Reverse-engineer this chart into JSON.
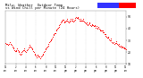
{
  "title": "Milw. Weather  Outdoor Temp",
  "title2": "vs Wind Chill per Minute (24 Hours)",
  "title_fontsize": 2.8,
  "bg_color": "#ffffff",
  "plot_bg_color": "#ffffff",
  "dot_color": "#ff0000",
  "dot_size": 0.5,
  "x_min": 0,
  "x_max": 1440,
  "y_min": 10,
  "y_max": 55,
  "y_ticks": [
    10,
    20,
    30,
    40,
    50
  ],
  "y_tick_labels": [
    "10",
    "20",
    "30",
    "40",
    "50"
  ],
  "legend_blue": "#3333ff",
  "legend_red": "#ff0000",
  "grid_color": "#bbbbbb",
  "temp_data": [
    28,
    27,
    27,
    26,
    26,
    27,
    28,
    27,
    27,
    26,
    25,
    24,
    23,
    22,
    21,
    21,
    22,
    23,
    22,
    21,
    20,
    19,
    18,
    19,
    20,
    21,
    22,
    23,
    22,
    21,
    20,
    21,
    22,
    23,
    24,
    25,
    26,
    25,
    24,
    23,
    22,
    21,
    20,
    19,
    18,
    17,
    16,
    17,
    18,
    17,
    16,
    15,
    15,
    16,
    17,
    18,
    19,
    20,
    21,
    22,
    23,
    24,
    25,
    26,
    27,
    28,
    29,
    30,
    31,
    32,
    33,
    34,
    35,
    36,
    37,
    38,
    39,
    40,
    41,
    42,
    43,
    44,
    45,
    46,
    47,
    48,
    47,
    46,
    45,
    46,
    47,
    48,
    47,
    46,
    45,
    46,
    47,
    48,
    47,
    48,
    47,
    46,
    47,
    48,
    49,
    50,
    49,
    50,
    49,
    48,
    47,
    48,
    47,
    46,
    47,
    48,
    47,
    46,
    45,
    44,
    45,
    44,
    43,
    44,
    45,
    44,
    43,
    42,
    43,
    44,
    43,
    42,
    43,
    42,
    41,
    42,
    41,
    40,
    41,
    40,
    39,
    38,
    39,
    38,
    37,
    38,
    37,
    36,
    35,
    34,
    33,
    32,
    33,
    32,
    31,
    30,
    31,
    30,
    29,
    28,
    29,
    28,
    27,
    28,
    29,
    28,
    27,
    26,
    27,
    26,
    25,
    26,
    25,
    24,
    25,
    24,
    23,
    24,
    23,
    22
  ],
  "xtick_hours": [
    0,
    2,
    4,
    6,
    8,
    10,
    12,
    14,
    16,
    18,
    20,
    22,
    24
  ]
}
